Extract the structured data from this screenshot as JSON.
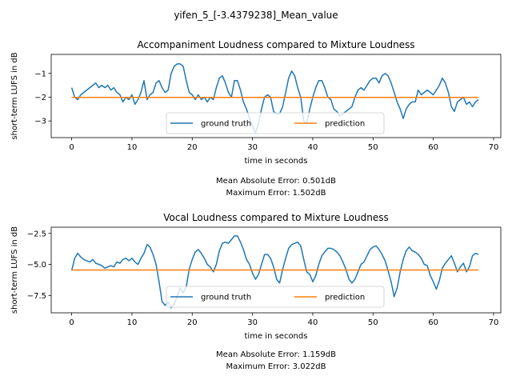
{
  "figure": {
    "suptitle": "yifen_5_[-3.4379238]_Mean_value"
  },
  "colors": {
    "ground_truth": "#1f77b4",
    "prediction": "#ff7f0e"
  },
  "chart_data": [
    {
      "type": "line",
      "title": "Accompaniment Loudness compared to Mixture Loudness",
      "xlabel": "time in seconds",
      "ylabel": "short-term LUFS in dB",
      "xlim": [
        -3.4,
        71.2
      ],
      "ylim": [
        -3.7,
        -0.2
      ],
      "xticks": [
        0,
        10,
        20,
        30,
        40,
        50,
        60,
        70
      ],
      "yticks": [
        -3,
        -2,
        -1
      ],
      "legend": {
        "placement": "lower-center",
        "entries": [
          "ground truth",
          "prediction"
        ]
      },
      "grid": false,
      "notes": [
        "Mean Absolute Error: 0.501dB",
        "Maximum Error: 1.502dB"
      ],
      "series": [
        {
          "name": "ground truth",
          "color": "#1f77b4",
          "x": [
            0,
            0.5,
            1,
            1.5,
            2,
            2.5,
            3,
            3.5,
            4,
            4.5,
            5,
            5.5,
            6,
            6.5,
            7,
            7.5,
            8,
            8.5,
            9,
            9.5,
            10,
            10.5,
            11,
            11.5,
            12,
            12.5,
            13,
            13.5,
            14,
            14.5,
            15,
            15.5,
            16,
            16.5,
            17,
            17.5,
            18,
            18.5,
            19,
            19.5,
            20,
            20.5,
            21,
            21.5,
            22,
            22.5,
            23,
            23.5,
            24,
            24.5,
            25,
            25.5,
            26,
            26.5,
            27,
            27.5,
            28,
            28.5,
            29,
            29.5,
            30,
            30.5,
            31,
            31.5,
            32,
            32.5,
            33,
            33.5,
            34,
            34.5,
            35,
            35.5,
            36,
            36.5,
            37,
            37.5,
            38,
            38.5,
            39,
            39.5,
            40,
            40.5,
            41,
            41.5,
            42,
            42.5,
            43,
            43.5,
            44,
            44.5,
            45,
            45.5,
            46,
            46.5,
            47,
            47.5,
            48,
            48.5,
            49,
            49.5,
            50,
            50.5,
            51,
            51.5,
            52,
            52.5,
            53,
            53.5,
            54,
            54.5,
            55,
            55.5,
            56,
            56.5,
            57,
            57.5,
            58,
            58.5,
            59,
            59.5,
            60,
            60.5,
            61,
            61.5,
            62,
            62.5,
            63,
            63.5,
            64,
            64.5,
            65,
            65.5,
            66,
            66.5,
            67,
            67.5
          ],
          "y": [
            -1.6,
            -2.0,
            -2.1,
            -1.9,
            -1.8,
            -1.7,
            -1.6,
            -1.5,
            -1.4,
            -1.6,
            -1.5,
            -1.6,
            -1.5,
            -1.7,
            -1.6,
            -1.8,
            -1.9,
            -2.2,
            -2.0,
            -2.1,
            -1.9,
            -2.3,
            -2.1,
            -1.8,
            -1.3,
            -2.1,
            -1.9,
            -1.8,
            -1.4,
            -1.3,
            -1.6,
            -1.8,
            -1.7,
            -1.0,
            -0.7,
            -0.6,
            -0.6,
            -0.7,
            -1.3,
            -1.8,
            -1.9,
            -2.1,
            -1.9,
            -2.1,
            -2.0,
            -2.2,
            -2.0,
            -2.1,
            -1.6,
            -1.2,
            -1.1,
            -1.4,
            -1.8,
            -2.0,
            -1.3,
            -1.3,
            -1.7,
            -2.2,
            -2.5,
            -2.9,
            -3.2,
            -3.5,
            -3.1,
            -2.5,
            -2.0,
            -1.9,
            -2.0,
            -2.6,
            -2.7,
            -2.7,
            -2.4,
            -1.8,
            -1.2,
            -0.9,
            -1.1,
            -1.6,
            -2.0,
            -3.0,
            -3.1,
            -2.5,
            -2.0,
            -1.6,
            -1.3,
            -1.3,
            -1.6,
            -2.0,
            -2.1,
            -2.5,
            -2.6,
            -2.8,
            -2.7,
            -2.6,
            -2.5,
            -2.4,
            -2.0,
            -1.7,
            -1.6,
            -1.7,
            -1.5,
            -1.3,
            -1.2,
            -1.2,
            -1.4,
            -1.1,
            -1.0,
            -1.1,
            -1.4,
            -1.8,
            -2.2,
            -2.5,
            -2.9,
            -2.5,
            -2.3,
            -2.2,
            -2.2,
            -1.7,
            -1.9,
            -1.8,
            -1.7,
            -1.8,
            -1.9,
            -1.7,
            -1.5,
            -1.2,
            -1.4,
            -1.8,
            -2.4,
            -2.6,
            -2.2,
            -2.1,
            -2.0,
            -2.3,
            -2.2,
            -2.4,
            -2.2,
            -2.1
          ]
        },
        {
          "name": "prediction",
          "color": "#ff7f0e",
          "x": [
            0,
            67.5
          ],
          "y": [
            -2.01,
            -2.01
          ]
        }
      ]
    },
    {
      "type": "line",
      "title": "Vocal Loudness compared to Mixture Loudness",
      "xlabel": "time in seconds",
      "ylabel": "short-term LUFS in dB",
      "xlim": [
        -3.4,
        71.2
      ],
      "ylim": [
        -8.9,
        -2.0
      ],
      "xticks": [
        0,
        10,
        20,
        30,
        40,
        50,
        60,
        70
      ],
      "yticks": [
        -7.5,
        -5.0,
        -2.5
      ],
      "ytick_labels": [
        "−7.5",
        "−5.0",
        "−2.5"
      ],
      "legend": {
        "placement": "lower-center",
        "entries": [
          "ground truth",
          "prediction"
        ]
      },
      "grid": false,
      "notes": [
        "Mean Absolute Error: 1.159dB",
        "Maximum Error: 3.022dB"
      ],
      "series": [
        {
          "name": "ground truth",
          "color": "#1f77b4",
          "x": [
            0,
            0.5,
            1,
            1.5,
            2,
            2.5,
            3,
            3.5,
            4,
            4.5,
            5,
            5.5,
            6,
            6.5,
            7,
            7.5,
            8,
            8.5,
            9,
            9.5,
            10,
            10.5,
            11,
            11.5,
            12,
            12.5,
            13,
            13.5,
            14,
            14.5,
            15,
            15.5,
            16,
            16.5,
            17,
            17.5,
            18,
            18.5,
            19,
            19.5,
            20,
            20.5,
            21,
            21.5,
            22,
            22.5,
            23,
            23.5,
            24,
            24.5,
            25,
            25.5,
            26,
            26.5,
            27,
            27.5,
            28,
            28.5,
            29,
            29.5,
            30,
            30.5,
            31,
            31.5,
            32,
            32.5,
            33,
            33.5,
            34,
            34.5,
            35,
            35.5,
            36,
            36.5,
            37,
            37.5,
            38,
            38.5,
            39,
            39.5,
            40,
            40.5,
            41,
            41.5,
            42,
            42.5,
            43,
            43.5,
            44,
            44.5,
            45,
            45.5,
            46,
            46.5,
            47,
            47.5,
            48,
            48.5,
            49,
            49.5,
            50,
            50.5,
            51,
            51.5,
            52,
            52.5,
            53,
            53.5,
            54,
            54.5,
            55,
            55.5,
            56,
            56.5,
            57,
            57.5,
            58,
            58.5,
            59,
            59.5,
            60,
            60.5,
            61,
            61.5,
            62,
            62.5,
            63,
            63.5,
            64,
            64.5,
            65,
            65.5,
            66,
            66.5,
            67,
            67.5
          ],
          "y": [
            -5.5,
            -4.5,
            -4.1,
            -4.4,
            -4.6,
            -4.7,
            -4.8,
            -4.6,
            -4.9,
            -5.0,
            -5.1,
            -5.3,
            -5.2,
            -5.1,
            -5.2,
            -4.8,
            -4.9,
            -4.6,
            -4.5,
            -4.7,
            -4.5,
            -4.8,
            -5.0,
            -4.5,
            -4.1,
            -3.4,
            -3.6,
            -4.2,
            -5.0,
            -6.4,
            -8.0,
            -8.3,
            -8.0,
            -8.5,
            -8.2,
            -7.6,
            -6.9,
            -7.3,
            -6.8,
            -5.4,
            -4.6,
            -4.0,
            -3.8,
            -4.1,
            -4.5,
            -5.0,
            -5.2,
            -5.6,
            -5.0,
            -3.9,
            -3.3,
            -3.2,
            -3.3,
            -3.0,
            -2.7,
            -2.7,
            -3.2,
            -3.8,
            -4.6,
            -5.0,
            -5.7,
            -6.2,
            -5.8,
            -5.0,
            -4.2,
            -4.2,
            -4.5,
            -5.2,
            -6.2,
            -6.5,
            -5.4,
            -4.5,
            -3.7,
            -3.4,
            -3.3,
            -3.2,
            -3.5,
            -4.6,
            -5.6,
            -5.8,
            -6.4,
            -5.9,
            -5.0,
            -4.3,
            -4.0,
            -3.7,
            -3.7,
            -3.8,
            -4.0,
            -4.3,
            -4.8,
            -5.4,
            -6.2,
            -6.5,
            -6.2,
            -5.6,
            -5.0,
            -4.8,
            -4.3,
            -3.8,
            -3.6,
            -3.5,
            -3.8,
            -4.2,
            -4.7,
            -5.5,
            -6.4,
            -7.6,
            -6.9,
            -5.6,
            -4.6,
            -3.9,
            -3.6,
            -3.9,
            -4.0,
            -4.2,
            -4.5,
            -5.0,
            -5.1,
            -5.9,
            -6.4,
            -7.0,
            -6.3,
            -5.3,
            -4.9,
            -4.6,
            -4.3,
            -4.9,
            -5.6,
            -5.2,
            -4.9,
            -5.6,
            -5.2,
            -4.3,
            -4.1,
            -4.2
          ]
        },
        {
          "name": "prediction",
          "color": "#ff7f0e",
          "x": [
            0,
            67.5
          ],
          "y": [
            -5.45,
            -5.45
          ]
        }
      ]
    }
  ]
}
